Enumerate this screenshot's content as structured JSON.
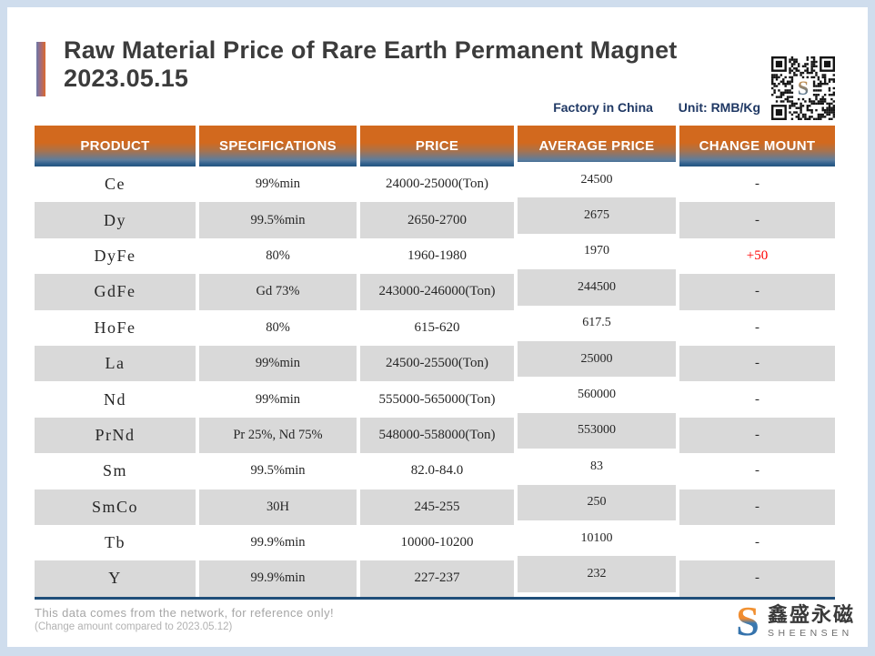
{
  "header": {
    "title_line1": "Raw Material Price of Rare Earth Permanent Magnet",
    "title_line2": "2023.05.15",
    "factory_label": "Factory in China",
    "unit_label": "Unit: RMB/Kg"
  },
  "table": {
    "columns": [
      "PRODUCT",
      "SPECIFICATIONS",
      "PRICE",
      "AVERAGE PRICE",
      "CHANGE MOUNT"
    ],
    "rows": [
      {
        "product": "Ce",
        "spec": "99%min",
        "price": "24000-25000(Ton)",
        "avg": "24500",
        "change": "-"
      },
      {
        "product": "Dy",
        "spec": "99.5%min",
        "price": "2650-2700",
        "avg": "2675",
        "change": "-"
      },
      {
        "product": "DyFe",
        "spec": "80%",
        "price": "1960-1980",
        "avg": "1970",
        "change": "+50"
      },
      {
        "product": "GdFe",
        "spec": "Gd 73%",
        "price": "243000-246000(Ton)",
        "avg": "244500",
        "change": "-"
      },
      {
        "product": "HoFe",
        "spec": "80%",
        "price": "615-620",
        "avg": "617.5",
        "change": "-"
      },
      {
        "product": "La",
        "spec": "99%min",
        "price": "24500-25500(Ton)",
        "avg": "25000",
        "change": "-"
      },
      {
        "product": "Nd",
        "spec": "99%min",
        "price": "555000-565000(Ton)",
        "avg": "560000",
        "change": "-"
      },
      {
        "product": "PrNd",
        "spec": "Pr 25%, Nd 75%",
        "price": "548000-558000(Ton)",
        "avg": "553000",
        "change": "-"
      },
      {
        "product": "Sm",
        "spec": "99.5%min",
        "price": "82.0-84.0",
        "avg": "83",
        "change": "-"
      },
      {
        "product": "SmCo",
        "spec": "30H",
        "price": "245-255",
        "avg": "250",
        "change": "-"
      },
      {
        "product": "Tb",
        "spec": "99.9%min",
        "price": "10000-10200",
        "avg": "10100",
        "change": "-"
      },
      {
        "product": "Y",
        "spec": "99.9%min",
        "price": "227-237",
        "avg": "232",
        "change": "-"
      }
    ]
  },
  "footer": {
    "note_line1": "This data comes from the network, for reference only!",
    "note_line2": "(Change amount compared to 2023.05.12)",
    "logo_cn": "鑫盛永磁",
    "logo_en": "SHEENSEN"
  },
  "colors": {
    "accent_orange": "#d2691e",
    "accent_blue": "#2e5e8c",
    "table_edge_navy": "#1f4e79",
    "stripe_gray": "#d9d9d9",
    "change_up_red": "#ff0000",
    "frame_blue": "#cfdded",
    "meta_navy": "#1f3864",
    "title_gray": "#3c3c3c",
    "footer_gray": "#a6a6a6",
    "logo_orange": "#f29b38",
    "logo_blue": "#2c6ba8"
  }
}
